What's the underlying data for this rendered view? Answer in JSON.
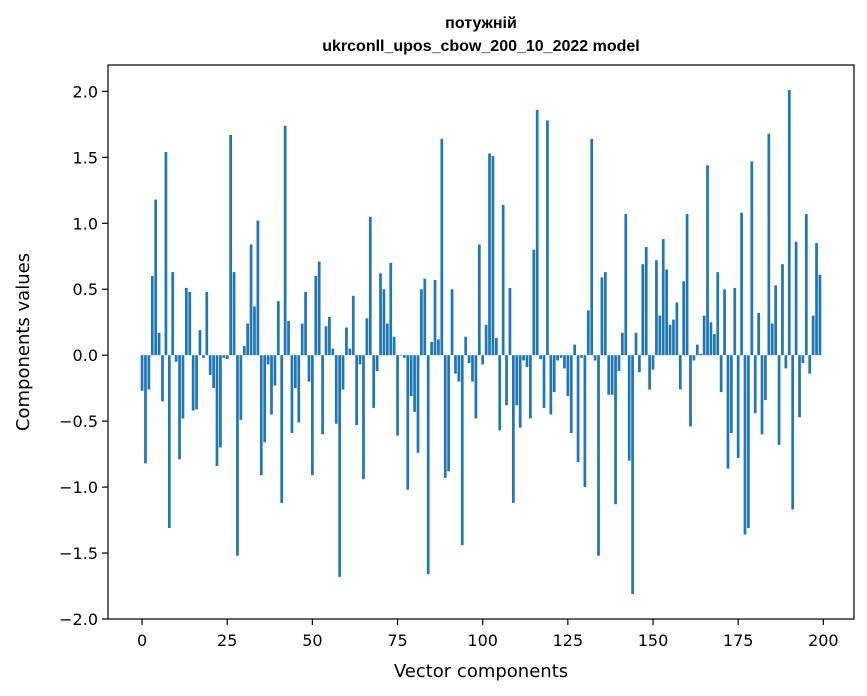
{
  "chart_data": {
    "type": "bar",
    "title_line1": "потужній",
    "title_line2": "ukrconll_upos_cbow_200_10_2022 model",
    "xlabel": "Vector components",
    "ylabel": "Components values",
    "xlim": [
      -10,
      209
    ],
    "ylim": [
      -2.0,
      2.2
    ],
    "xticks": [
      0,
      25,
      50,
      75,
      100,
      125,
      150,
      175,
      200
    ],
    "xtick_labels": [
      "0",
      "25",
      "50",
      "75",
      "100",
      "125",
      "150",
      "175",
      "200"
    ],
    "yticks": [
      2.0,
      1.5,
      1.0,
      0.5,
      0.0,
      -0.5,
      -1.0,
      -1.5,
      -2.0
    ],
    "ytick_labels": [
      "2.0",
      "1.5",
      "1.0",
      "0.5",
      "0.0",
      "−0.5",
      "−1.0",
      "−1.5",
      "−2.0"
    ],
    "bar_color": "#1f77b4",
    "grid": false,
    "x": [
      0,
      1,
      2,
      3,
      4,
      5,
      6,
      7,
      8,
      9,
      10,
      11,
      12,
      13,
      14,
      15,
      16,
      17,
      18,
      19,
      20,
      21,
      22,
      23,
      24,
      25,
      26,
      27,
      28,
      29,
      30,
      31,
      32,
      33,
      34,
      35,
      36,
      37,
      38,
      39,
      40,
      41,
      42,
      43,
      44,
      45,
      46,
      47,
      48,
      49,
      50,
      51,
      52,
      53,
      54,
      55,
      56,
      57,
      58,
      59,
      60,
      61,
      62,
      63,
      64,
      65,
      66,
      67,
      68,
      69,
      70,
      71,
      72,
      73,
      74,
      75,
      76,
      77,
      78,
      79,
      80,
      81,
      82,
      83,
      84,
      85,
      86,
      87,
      88,
      89,
      90,
      91,
      92,
      93,
      94,
      95,
      96,
      97,
      98,
      99,
      100,
      101,
      102,
      103,
      104,
      105,
      106,
      107,
      108,
      109,
      110,
      111,
      112,
      113,
      114,
      115,
      116,
      117,
      118,
      119,
      120,
      121,
      122,
      123,
      124,
      125,
      126,
      127,
      128,
      129,
      130,
      131,
      132,
      133,
      134,
      135,
      136,
      137,
      138,
      139,
      140,
      141,
      142,
      143,
      144,
      145,
      146,
      147,
      148,
      149,
      150,
      151,
      152,
      153,
      154,
      155,
      156,
      157,
      158,
      159,
      160,
      161,
      162,
      163,
      164,
      165,
      166,
      167,
      168,
      169,
      170,
      171,
      172,
      173,
      174,
      175,
      176,
      177,
      178,
      179,
      180,
      181,
      182,
      183,
      184,
      185,
      186,
      187,
      188,
      189,
      190,
      191,
      192,
      193,
      194,
      195,
      196,
      197,
      198,
      199
    ],
    "values": [
      -0.27,
      -0.82,
      -0.26,
      0.6,
      1.18,
      0.17,
      -0.35,
      1.54,
      -1.31,
      0.63,
      -0.05,
      -0.79,
      -0.48,
      0.51,
      0.48,
      -0.42,
      -0.41,
      0.19,
      -0.02,
      0.48,
      -0.15,
      -0.25,
      -0.84,
      -0.7,
      -0.02,
      -0.03,
      1.67,
      0.63,
      -1.52,
      -0.49,
      0.07,
      0.24,
      0.84,
      0.37,
      1.02,
      -0.91,
      -0.66,
      -0.07,
      -0.45,
      -0.23,
      0.41,
      -1.12,
      1.74,
      0.26,
      -0.59,
      -0.25,
      -0.51,
      0.24,
      0.48,
      -0.2,
      -0.91,
      0.6,
      0.71,
      -0.6,
      0.22,
      0.29,
      0.05,
      -0.52,
      -1.68,
      -0.26,
      0.21,
      0.05,
      0.45,
      -0.53,
      -0.07,
      -0.94,
      0.28,
      1.05,
      -0.4,
      -0.12,
      0.62,
      0.5,
      0.24,
      0.7,
      0.14,
      -0.61,
      0.0,
      -0.02,
      -1.02,
      -0.31,
      -0.43,
      -0.74,
      0.5,
      0.58,
      -1.66,
      0.1,
      0.57,
      0.12,
      1.64,
      -0.93,
      -0.88,
      0.5,
      -0.14,
      -0.2,
      -1.44,
      0.14,
      -0.06,
      -0.2,
      -0.48,
      0.84,
      -0.07,
      0.23,
      1.53,
      1.51,
      0.13,
      -0.57,
      1.14,
      -0.38,
      0.51,
      -1.12,
      -0.38,
      -0.55,
      -0.04,
      -0.09,
      -0.48,
      0.8,
      1.86,
      -0.03,
      -0.4,
      1.78,
      -0.45,
      -0.28,
      -0.04,
      -0.02,
      -0.1,
      -0.31,
      -0.59,
      0.08,
      -0.81,
      -0.02,
      -1.0,
      0.34,
      1.64,
      -0.04,
      -1.52,
      0.59,
      0.63,
      -0.3,
      -0.3,
      -1.13,
      -0.12,
      0.17,
      1.07,
      -0.8,
      -1.81,
      0.17,
      -0.13,
      0.69,
      0.82,
      -0.26,
      -0.11,
      0.72,
      0.3,
      0.88,
      0.65,
      0.23,
      0.27,
      0.4,
      -0.26,
      0.56,
      1.07,
      -0.54,
      -0.04,
      0.08,
      0.01,
      0.3,
      1.44,
      0.25,
      0.16,
      0.63,
      -0.28,
      0.5,
      -0.86,
      -0.59,
      0.51,
      -0.78,
      1.08,
      -1.36,
      -1.31,
      1.47,
      -0.44,
      0.32,
      -0.6,
      -0.34,
      1.68,
      0.24,
      0.53,
      -0.68,
      0.69,
      -0.1,
      2.01,
      -1.17,
      0.86,
      -0.47,
      -0.06,
      1.07,
      -0.14,
      0.3,
      0.85,
      0.61
    ]
  }
}
